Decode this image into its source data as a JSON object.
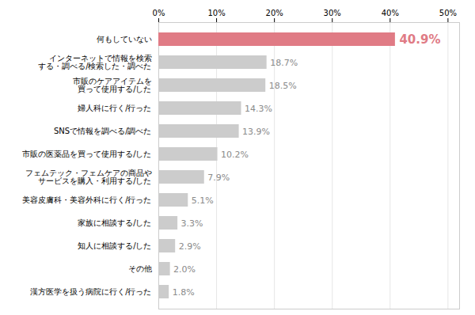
{
  "chart_data": {
    "type": "bar",
    "orientation": "horizontal",
    "categories": [
      "漢方医学を扱う病院に行く/行った",
      "その他",
      "知人に相談する/した",
      "家族に相談する/した",
      "美容皮膚科・美容外科に行く/行った",
      "フェムテック・フェムケアの商品や\nサービスを購入・利用する/した",
      "市販の医薬品を買って使用する/した",
      "SNSで情報を調べる/調べた",
      "婦人科に行く/行った",
      "市販のケアアイテムを\n買って使用する/した",
      "インターネットで情報を検索\nする・調べる/検索した・調べた",
      "何もしていない"
    ],
    "values": [
      1.8,
      2.0,
      2.9,
      3.3,
      5.1,
      7.9,
      10.2,
      13.9,
      14.3,
      18.5,
      18.7,
      40.9
    ],
    "value_labels": [
      "1.8%",
      "2.0%",
      "2.9%",
      "3.3%",
      "5.1%",
      "7.9%",
      "10.2%",
      "13.9%",
      "14.3%",
      "18.5%",
      "18.7%",
      "40.9%"
    ],
    "colors": [
      "#cccccc",
      "#cccccc",
      "#cccccc",
      "#cccccc",
      "#cccccc",
      "#cccccc",
      "#cccccc",
      "#cccccc",
      "#cccccc",
      "#cccccc",
      "#cccccc",
      "#e07b85"
    ],
    "xlim": [
      0,
      52
    ],
    "xticks": [
      {
        "value": 0,
        "label": "0%"
      },
      {
        "value": 10,
        "label": "10%"
      },
      {
        "value": 20,
        "label": "20%"
      },
      {
        "value": 30,
        "label": "30%"
      },
      {
        "value": 40,
        "label": "40%"
      },
      {
        "value": 50,
        "label": "50%"
      }
    ],
    "grid": true,
    "data_labels": true
  }
}
